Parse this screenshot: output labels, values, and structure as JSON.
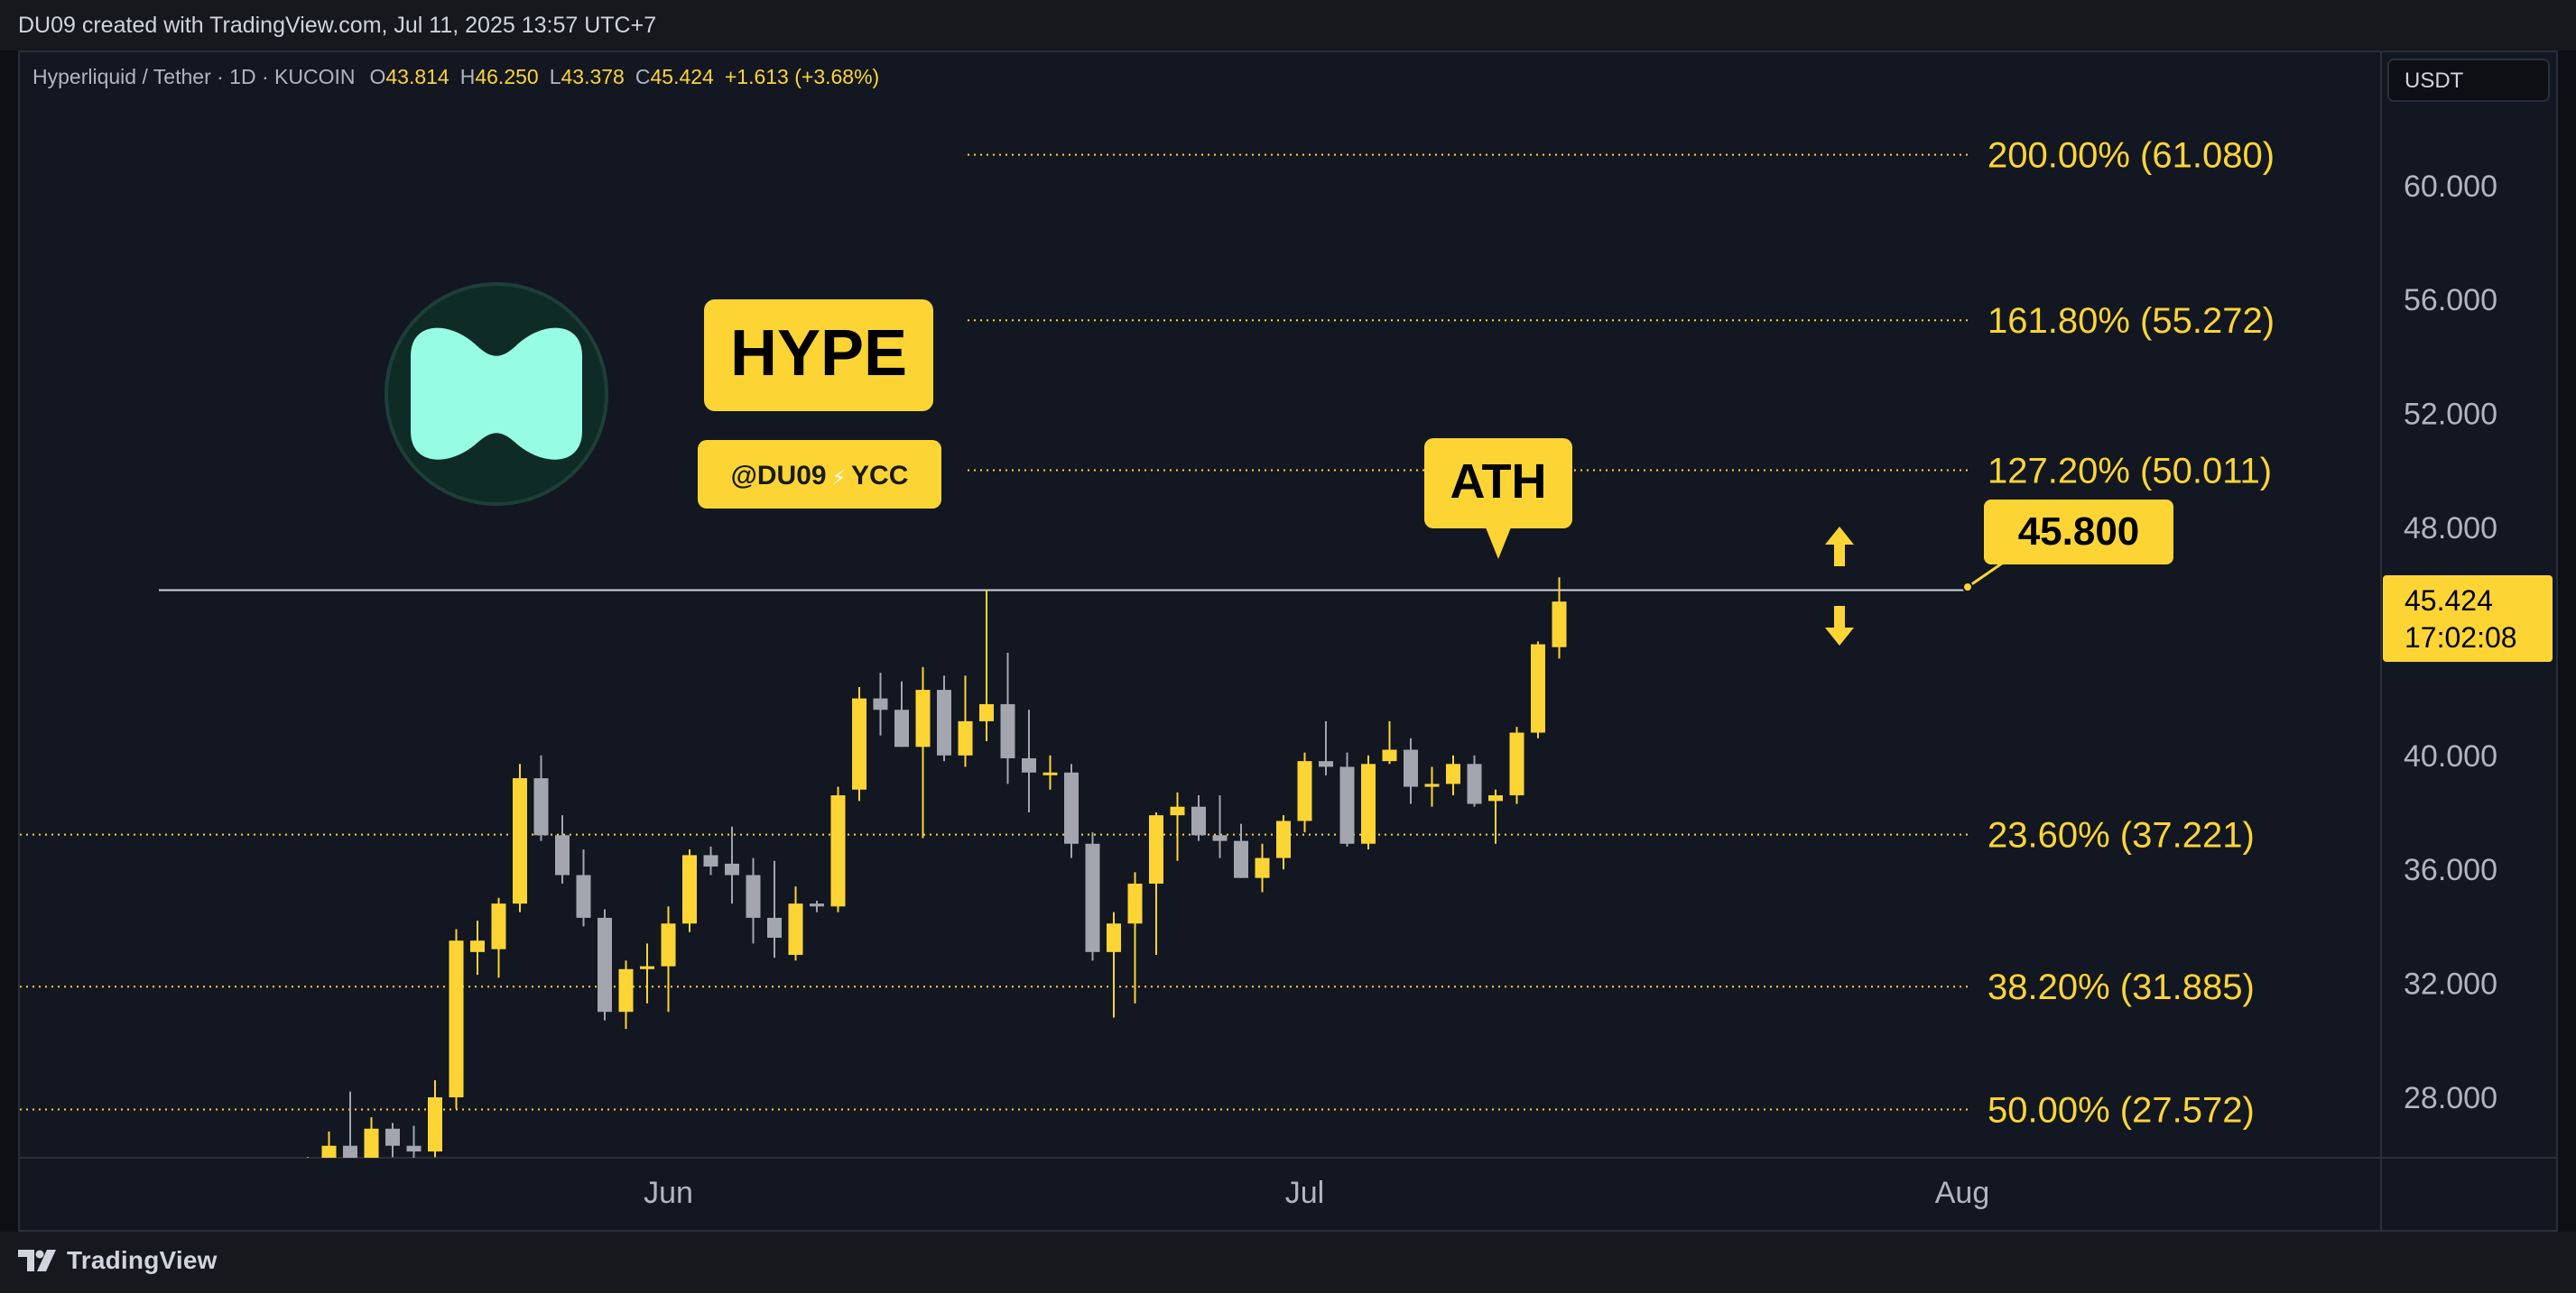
{
  "header": {
    "credit": "DU09 created with TradingView.com, Jul 11, 2025 13:57 UTC+7"
  },
  "legend": {
    "symbol": "Hyperliquid / Tether · 1D · KUCOIN",
    "o_label": "O",
    "o_value": "43.814",
    "h_label": "H",
    "h_value": "46.250",
    "l_label": "L",
    "l_value": "43.378",
    "c_label": "C",
    "c_value": "45.424",
    "change": "+1.613 (+3.68%)"
  },
  "currency_button": "USDT",
  "brand": {
    "ticker": "HYPE",
    "handle": "@DU09",
    "bolt": "⚡",
    "handle_suffix": "YCC",
    "logo": "hyperliquid-logo"
  },
  "annotations": {
    "ath_label": "ATH",
    "ath_level": "45.800"
  },
  "price_tag": {
    "price": "45.424",
    "countdown": "17:02:08"
  },
  "footer": {
    "brand": "TradingView"
  },
  "colors": {
    "up": "#fcd535",
    "down": "#a3a6ae",
    "bg": "#131722",
    "grid_text": "#b2b5be",
    "accent": "#fcd535"
  },
  "chart_data": {
    "type": "candlestick",
    "ylim": [
      25.2,
      65.0
    ],
    "y_ticks": [
      {
        "value": 28,
        "label": "28.000"
      },
      {
        "value": 32,
        "label": "32.000"
      },
      {
        "value": 36,
        "label": "36.000"
      },
      {
        "value": 40,
        "label": "40.000"
      },
      {
        "value": 48,
        "label": "48.000"
      },
      {
        "value": 52,
        "label": "52.000"
      },
      {
        "value": 56,
        "label": "56.000"
      },
      {
        "value": 60,
        "label": "60.000"
      }
    ],
    "x_ticks": [
      "Jun",
      "Jul",
      "Aug"
    ],
    "fib_levels": [
      {
        "value": 61.08,
        "label": "200.00% (61.080)"
      },
      {
        "value": 55.272,
        "label": "161.80% (55.272)"
      },
      {
        "value": 50.011,
        "label": "127.20% (50.011)"
      },
      {
        "value": 37.221,
        "label": "23.60% (37.221)"
      },
      {
        "value": 31.885,
        "label": "38.20% (31.885)"
      },
      {
        "value": 27.572,
        "label": "50.00% (27.572)"
      }
    ],
    "resistance": 45.8,
    "candles": [
      {
        "date": "2025-05-09",
        "o": 25.15,
        "h": 25.6,
        "l": 24.9,
        "c": 25.5
      },
      {
        "date": "2025-05-10",
        "o": 25.5,
        "h": 25.7,
        "l": 24.8,
        "c": 25.1
      },
      {
        "date": "2025-05-12",
        "o": 25.1,
        "h": 25.8,
        "l": 24.7,
        "c": 25.3
      },
      {
        "date": "2025-05-14",
        "o": 25.0,
        "h": 25.5,
        "l": 24.6,
        "c": 25.2
      },
      {
        "date": "2025-05-15",
        "o": 25.2,
        "h": 25.9,
        "l": 24.8,
        "c": 25.5
      },
      {
        "date": "2025-05-16",
        "o": 25.5,
        "h": 26.8,
        "l": 25.2,
        "c": 26.3
      },
      {
        "date": "2025-05-17",
        "o": 26.3,
        "h": 28.2,
        "l": 25.6,
        "c": 25.6
      },
      {
        "date": "2025-05-18",
        "o": 25.6,
        "h": 27.3,
        "l": 25.1,
        "c": 26.9
      },
      {
        "date": "2025-05-19",
        "o": 26.9,
        "h": 27.1,
        "l": 25.9,
        "c": 26.3
      },
      {
        "date": "2025-05-20",
        "o": 26.3,
        "h": 27.0,
        "l": 25.5,
        "c": 26.1
      },
      {
        "date": "2025-05-21",
        "o": 26.1,
        "h": 28.6,
        "l": 25.9,
        "c": 28.0
      },
      {
        "date": "2025-05-22",
        "o": 28.0,
        "h": 33.9,
        "l": 27.6,
        "c": 33.5
      },
      {
        "date": "2025-05-23",
        "o": 33.1,
        "h": 34.2,
        "l": 32.3,
        "c": 33.5
      },
      {
        "date": "2025-05-24",
        "o": 33.2,
        "h": 35.0,
        "l": 32.2,
        "c": 34.8
      },
      {
        "date": "2025-05-25",
        "o": 34.8,
        "h": 39.7,
        "l": 34.5,
        "c": 39.2
      },
      {
        "date": "2025-05-26",
        "o": 39.2,
        "h": 40.0,
        "l": 37.0,
        "c": 37.2
      },
      {
        "date": "2025-05-27",
        "o": 37.2,
        "h": 37.9,
        "l": 35.5,
        "c": 35.8
      },
      {
        "date": "2025-05-28",
        "o": 35.8,
        "h": 36.7,
        "l": 34.0,
        "c": 34.3
      },
      {
        "date": "2025-05-29",
        "o": 34.3,
        "h": 34.6,
        "l": 30.7,
        "c": 31.0
      },
      {
        "date": "2025-05-30",
        "o": 31.0,
        "h": 32.8,
        "l": 30.4,
        "c": 32.5
      },
      {
        "date": "2025-05-31",
        "o": 32.5,
        "h": 33.4,
        "l": 31.3,
        "c": 32.6
      },
      {
        "date": "2025-06-01",
        "o": 32.6,
        "h": 34.7,
        "l": 31.0,
        "c": 34.1
      },
      {
        "date": "2025-06-02",
        "o": 34.1,
        "h": 36.7,
        "l": 33.8,
        "c": 36.5
      },
      {
        "date": "2025-06-03",
        "o": 36.5,
        "h": 36.8,
        "l": 35.8,
        "c": 36.1
      },
      {
        "date": "2025-06-04",
        "o": 36.2,
        "h": 37.5,
        "l": 34.8,
        "c": 35.8
      },
      {
        "date": "2025-06-05",
        "o": 35.8,
        "h": 36.4,
        "l": 33.4,
        "c": 34.3
      },
      {
        "date": "2025-06-06",
        "o": 34.3,
        "h": 36.3,
        "l": 32.9,
        "c": 33.6
      },
      {
        "date": "2025-06-07",
        "o": 33.0,
        "h": 35.4,
        "l": 32.8,
        "c": 34.8
      },
      {
        "date": "2025-06-08",
        "o": 34.8,
        "h": 34.9,
        "l": 34.5,
        "c": 34.7
      },
      {
        "date": "2025-06-09",
        "o": 34.7,
        "h": 38.9,
        "l": 34.5,
        "c": 38.6
      },
      {
        "date": "2025-06-10",
        "o": 38.8,
        "h": 42.4,
        "l": 38.4,
        "c": 42.0
      },
      {
        "date": "2025-06-11",
        "o": 42.0,
        "h": 42.9,
        "l": 40.7,
        "c": 41.6
      },
      {
        "date": "2025-06-12",
        "o": 41.6,
        "h": 42.6,
        "l": 40.3,
        "c": 40.3
      },
      {
        "date": "2025-06-13",
        "o": 40.3,
        "h": 43.1,
        "l": 37.1,
        "c": 42.3
      },
      {
        "date": "2025-06-14",
        "o": 42.3,
        "h": 42.8,
        "l": 39.8,
        "c": 40.0
      },
      {
        "date": "2025-06-15",
        "o": 40.0,
        "h": 42.8,
        "l": 39.6,
        "c": 41.2
      },
      {
        "date": "2025-06-16",
        "o": 41.2,
        "h": 45.8,
        "l": 40.5,
        "c": 41.8
      },
      {
        "date": "2025-06-17",
        "o": 41.8,
        "h": 43.6,
        "l": 39.0,
        "c": 39.9
      },
      {
        "date": "2025-06-18",
        "o": 39.9,
        "h": 41.6,
        "l": 38.0,
        "c": 39.4
      },
      {
        "date": "2025-06-19",
        "o": 39.4,
        "h": 40.0,
        "l": 38.8,
        "c": 39.4
      },
      {
        "date": "2025-06-20",
        "o": 39.4,
        "h": 39.7,
        "l": 36.4,
        "c": 36.9
      },
      {
        "date": "2025-06-21",
        "o": 36.9,
        "h": 37.3,
        "l": 32.8,
        "c": 33.1
      },
      {
        "date": "2025-06-22",
        "o": 33.1,
        "h": 34.5,
        "l": 30.8,
        "c": 34.1
      },
      {
        "date": "2025-06-23",
        "o": 34.1,
        "h": 35.9,
        "l": 31.3,
        "c": 35.5
      },
      {
        "date": "2025-06-24",
        "o": 35.5,
        "h": 38.0,
        "l": 33.0,
        "c": 37.9
      },
      {
        "date": "2025-06-25",
        "o": 37.9,
        "h": 38.7,
        "l": 36.3,
        "c": 38.2
      },
      {
        "date": "2025-06-26",
        "o": 38.2,
        "h": 38.6,
        "l": 37.0,
        "c": 37.2
      },
      {
        "date": "2025-06-27",
        "o": 37.2,
        "h": 38.6,
        "l": 36.4,
        "c": 37.0
      },
      {
        "date": "2025-06-28",
        "o": 37.0,
        "h": 37.6,
        "l": 35.7,
        "c": 35.7
      },
      {
        "date": "2025-06-29",
        "o": 35.7,
        "h": 36.9,
        "l": 35.2,
        "c": 36.4
      },
      {
        "date": "2025-06-30",
        "o": 36.4,
        "h": 37.9,
        "l": 36.0,
        "c": 37.7
      },
      {
        "date": "2025-07-01",
        "o": 37.7,
        "h": 40.1,
        "l": 37.3,
        "c": 39.8
      },
      {
        "date": "2025-07-02",
        "o": 39.8,
        "h": 41.2,
        "l": 39.3,
        "c": 39.6
      },
      {
        "date": "2025-07-03",
        "o": 39.6,
        "h": 40.1,
        "l": 36.8,
        "c": 36.9
      },
      {
        "date": "2025-07-04",
        "o": 36.9,
        "h": 40.0,
        "l": 36.7,
        "c": 39.7
      },
      {
        "date": "2025-07-05",
        "o": 39.8,
        "h": 41.2,
        "l": 39.7,
        "c": 40.2
      },
      {
        "date": "2025-07-06",
        "o": 40.2,
        "h": 40.6,
        "l": 38.3,
        "c": 38.9
      },
      {
        "date": "2025-07-07",
        "o": 38.9,
        "h": 39.6,
        "l": 38.2,
        "c": 39.0
      },
      {
        "date": "2025-07-08",
        "o": 39.0,
        "h": 40.0,
        "l": 38.6,
        "c": 39.7
      },
      {
        "date": "2025-07-09",
        "o": 39.7,
        "h": 40.0,
        "l": 38.2,
        "c": 38.3
      },
      {
        "date": "2025-07-10",
        "o": 38.4,
        "h": 38.8,
        "l": 36.9,
        "c": 38.6
      },
      {
        "date": "2025-07-11",
        "o": 38.6,
        "h": 41.0,
        "l": 38.3,
        "c": 40.8
      },
      {
        "date": "2025-07-12",
        "o": 40.8,
        "h": 44.0,
        "l": 40.6,
        "c": 43.9
      },
      {
        "date": "2025-07-13",
        "o": 43.8,
        "h": 46.25,
        "l": 43.4,
        "c": 45.4
      }
    ]
  }
}
